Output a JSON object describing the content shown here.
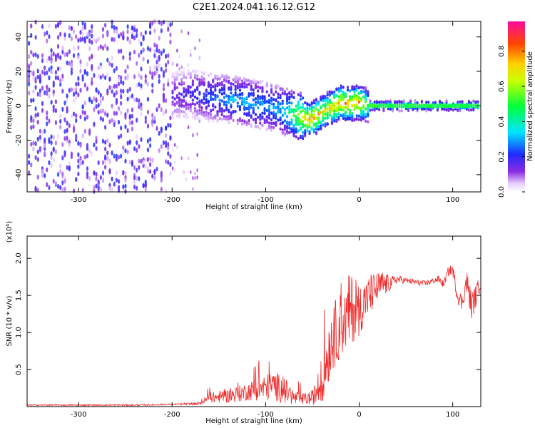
{
  "figure": {
    "title": "C2E1.2024.041.16.12.G12"
  },
  "chart_data": [
    {
      "type": "heatmap",
      "xlabel": "Height of straight line (km)",
      "ylabel": "Frequency (Hz)",
      "xlim": [
        -355,
        130
      ],
      "ylim": [
        -50,
        49
      ],
      "xticks": [
        -300,
        -200,
        -100,
        0,
        100
      ],
      "xtick_labels": [
        "-300",
        "-200",
        "-100",
        "0",
        "100"
      ],
      "yticks": [
        -40,
        -20,
        0,
        20,
        40
      ],
      "ytick_labels": [
        "-40",
        "-20",
        "0",
        "20",
        "40"
      ],
      "grid": false,
      "colorbar": {
        "label": "Normalized spectral amplitude",
        "range": [
          0,
          0.97
        ],
        "ticks": [
          0.0,
          0.2,
          0.4,
          0.6,
          0.8
        ],
        "tick_labels": [
          "0.0",
          "0.2",
          "0.4",
          "0.6",
          "0.8"
        ],
        "colormap": "rainbow (white-violet-blue-cyan-green-yellow-orange-red-magenta)"
      },
      "ridge": {
        "description": "frequency of the dominant spectral band versus height",
        "x": [
          -200,
          -180,
          -160,
          -140,
          -120,
          -100,
          -80,
          -65,
          -55,
          -48,
          -40,
          -30,
          -20,
          -10,
          0,
          10,
          30,
          60,
          100,
          130
        ],
        "y": [
          6,
          7,
          5,
          4,
          2,
          0,
          -3,
          -6,
          -8,
          -7,
          -4,
          -1,
          2,
          1,
          2,
          0,
          0,
          0,
          0,
          0
        ],
        "amplitude": [
          0.18,
          0.22,
          0.28,
          0.35,
          0.38,
          0.33,
          0.4,
          0.7,
          0.9,
          0.92,
          0.8,
          0.82,
          0.95,
          0.9,
          0.93,
          0.55,
          0.5,
          0.52,
          0.5,
          0.5
        ]
      }
    },
    {
      "type": "line",
      "xlabel": "Height of straight line (km)",
      "ylabel": "SNR (10 * v/v)",
      "y_multiplier": "(x10⁴)",
      "xlim": [
        -355,
        130
      ],
      "ylim": [
        0,
        2.3
      ],
      "xticks": [
        -300,
        -200,
        -100,
        0,
        100
      ],
      "xtick_labels": [
        "-300",
        "-200",
        "-100",
        "0",
        "100"
      ],
      "yticks": [
        0.5,
        1.0,
        1.5,
        2.0
      ],
      "ytick_labels": [
        "0.5",
        "1.0",
        "1.5",
        "2.0"
      ],
      "grid": false,
      "series": [
        {
          "color": "#ee2a2a",
          "x": [
            -355,
            -320,
            -280,
            -240,
            -200,
            -170,
            -160,
            -140,
            -120,
            -100,
            -90,
            -80,
            -70,
            -60,
            -50,
            -40,
            -35,
            -30,
            -25,
            -20,
            -15,
            -10,
            -5,
            0,
            5,
            10,
            15,
            20,
            25,
            30,
            35,
            40,
            50,
            60,
            70,
            80,
            85,
            90,
            95,
            100,
            105,
            110,
            115,
            120,
            125,
            130
          ],
          "y": [
            0.02,
            0.02,
            0.02,
            0.02,
            0.03,
            0.04,
            0.12,
            0.14,
            0.2,
            0.26,
            0.28,
            0.22,
            0.12,
            0.1,
            0.12,
            0.3,
            0.6,
            0.9,
            1.0,
            1.1,
            1.15,
            1.3,
            1.3,
            1.3,
            1.4,
            1.5,
            1.55,
            1.6,
            1.65,
            1.65,
            1.68,
            1.72,
            1.7,
            1.68,
            1.66,
            1.7,
            1.72,
            1.65,
            1.82,
            1.85,
            1.5,
            1.4,
            1.7,
            1.35,
            1.5,
            1.7
          ],
          "noise": [
            0.01,
            0.01,
            0.01,
            0.01,
            0.01,
            0.02,
            0.07,
            0.09,
            0.12,
            0.18,
            0.2,
            0.18,
            0.1,
            0.08,
            0.1,
            0.25,
            0.4,
            0.45,
            0.45,
            0.45,
            0.4,
            0.55,
            0.4,
            0.35,
            0.3,
            0.28,
            0.25,
            0.22,
            0.18,
            0.14,
            0.08,
            0.06,
            0.04,
            0.04,
            0.04,
            0.04,
            0.05,
            0.05,
            0.06,
            0.08,
            0.1,
            0.12,
            0.15,
            0.2,
            0.15,
            0.1
          ]
        }
      ]
    }
  ]
}
